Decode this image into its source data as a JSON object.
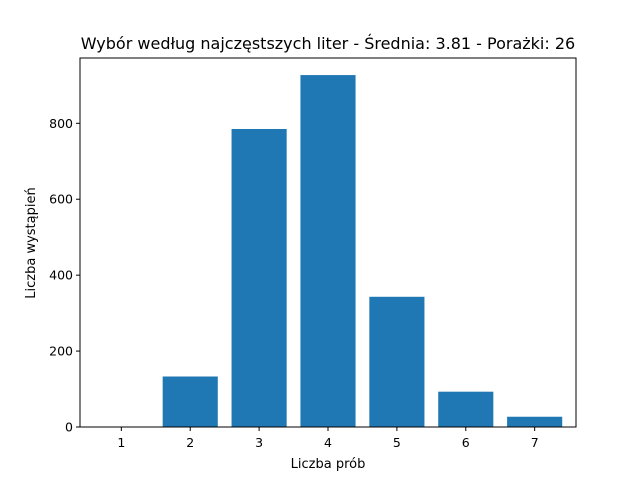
{
  "chart_data": {
    "type": "bar",
    "title": "Wybór według najczęstszych liter - Średnia: 3.81 - Porażki: 26",
    "xlabel": "Liczba prób",
    "ylabel": "Liczba wystąpień",
    "categories": [
      "1",
      "2",
      "3",
      "4",
      "5",
      "6",
      "7"
    ],
    "x": [
      1,
      2,
      3,
      4,
      5,
      6,
      7
    ],
    "values": [
      0,
      133,
      785,
      927,
      343,
      93,
      27
    ],
    "xlim": [
      0.4,
      7.6
    ],
    "ylim": [
      0,
      972
    ],
    "yticks": [
      0,
      200,
      400,
      600,
      800
    ],
    "grid": false,
    "legend": false,
    "bar_color": "#1f77b4"
  }
}
